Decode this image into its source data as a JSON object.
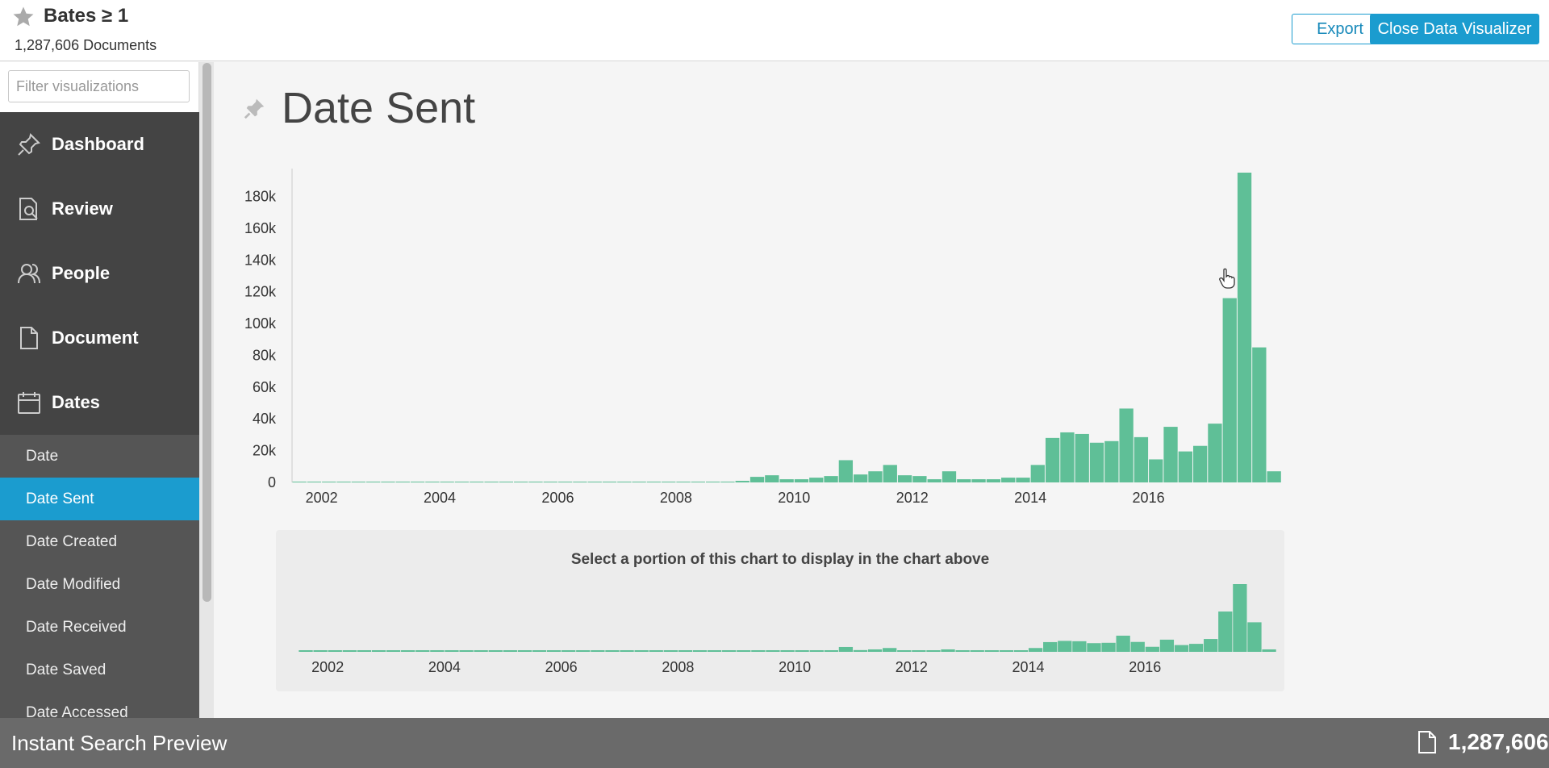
{
  "header": {
    "title": "Bates ≥ 1",
    "subtitle": "1,287,606 Documents",
    "export_label": "Export",
    "close_label": "Close Data Visualizer"
  },
  "sidebar": {
    "filter_placeholder": "Filter visualizations",
    "nav": [
      {
        "label": "Dashboard",
        "icon": "pin-icon"
      },
      {
        "label": "Review",
        "icon": "document-search-icon"
      },
      {
        "label": "People",
        "icon": "people-icon"
      },
      {
        "label": "Document",
        "icon": "document-icon"
      },
      {
        "label": "Dates",
        "icon": "calendar-icon"
      }
    ],
    "date_items": [
      "Date",
      "Date Sent",
      "Date Created",
      "Date Modified",
      "Date Received",
      "Date Saved",
      "Date Accessed"
    ],
    "active_item": "Date Sent"
  },
  "main": {
    "title": "Date Sent",
    "navigator_hint": "Select a portion of this chart to display in the chart above"
  },
  "footer": {
    "label": "Instant Search Preview",
    "count": "1,287,606"
  },
  "colors": {
    "accent": "#1b9ccf",
    "bar": "#5fbf97",
    "sidebar_bg": "#444444",
    "footer_bg": "#6a6a6a"
  },
  "chart_data": {
    "type": "bar",
    "title": "Date Sent",
    "xlabel": "",
    "ylabel": "",
    "ylim": [
      0,
      195000
    ],
    "xlim": [
      2001.5,
      2018.0
    ],
    "yticks": [
      0,
      20000,
      40000,
      60000,
      80000,
      100000,
      120000,
      140000,
      160000,
      180000
    ],
    "ytick_labels": [
      "0",
      "20k",
      "40k",
      "60k",
      "80k",
      "100k",
      "120k",
      "140k",
      "160k",
      "180k"
    ],
    "xticks": [
      2002,
      2004,
      2006,
      2008,
      2010,
      2012,
      2014,
      2016
    ],
    "xtick_labels": [
      "2002",
      "2004",
      "2006",
      "2008",
      "2010",
      "2012",
      "2014",
      "2016"
    ],
    "bin_years": 0.25,
    "bin_start": 2001.5,
    "values": [
      500,
      500,
      500,
      500,
      500,
      500,
      500,
      500,
      500,
      500,
      500,
      500,
      500,
      500,
      500,
      500,
      500,
      500,
      500,
      500,
      500,
      500,
      500,
      500,
      500,
      500,
      500,
      500,
      500,
      500,
      1000,
      3500,
      4500,
      2000,
      2000,
      3000,
      4000,
      14000,
      5000,
      7000,
      11000,
      4500,
      4000,
      2000,
      7000,
      2000,
      2000,
      2000,
      3000,
      3000,
      11000,
      28000,
      31500,
      30500,
      25000,
      26000,
      46500,
      28500,
      14500,
      35000,
      19500,
      23000,
      37000,
      116000,
      195000,
      85000,
      7000
    ],
    "grid": false,
    "legend": "none"
  }
}
